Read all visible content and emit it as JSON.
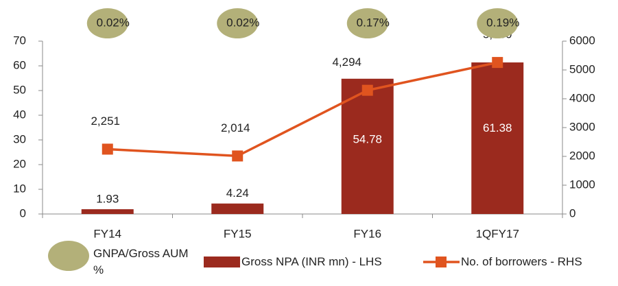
{
  "chart_data": {
    "type": "bar-line",
    "categories": [
      "FY14",
      "FY15",
      "FY16",
      "1QFY17"
    ],
    "series": [
      {
        "name": "Gross NPA (INR mn) - LHS",
        "type": "bar",
        "color": "#9b2a1e",
        "values": [
          1.93,
          4.24,
          54.78,
          61.38
        ]
      },
      {
        "name": "No. of borrowers - RHS",
        "type": "line",
        "axis": "y2",
        "color": "#e0541f",
        "values": [
          2251,
          2014,
          4294,
          5260
        ],
        "value_labels": [
          "2,251",
          "2,014",
          "4,294",
          "5,260"
        ]
      },
      {
        "name": "GNPA/Gross AUM %",
        "type": "bubble",
        "color": "#b3b079",
        "values": [
          0.02,
          0.02,
          0.17,
          0.19
        ],
        "value_labels": [
          "0.02%",
          "0.02%",
          "0.17%",
          "0.19%"
        ]
      }
    ],
    "ylim": [
      0,
      70
    ],
    "yticks": [
      0,
      10,
      20,
      30,
      40,
      50,
      60,
      70
    ],
    "y2lim": [
      0,
      6000
    ],
    "y2ticks": [
      0,
      1000,
      2000,
      3000,
      4000,
      5000,
      6000
    ],
    "legend": "bottom"
  }
}
